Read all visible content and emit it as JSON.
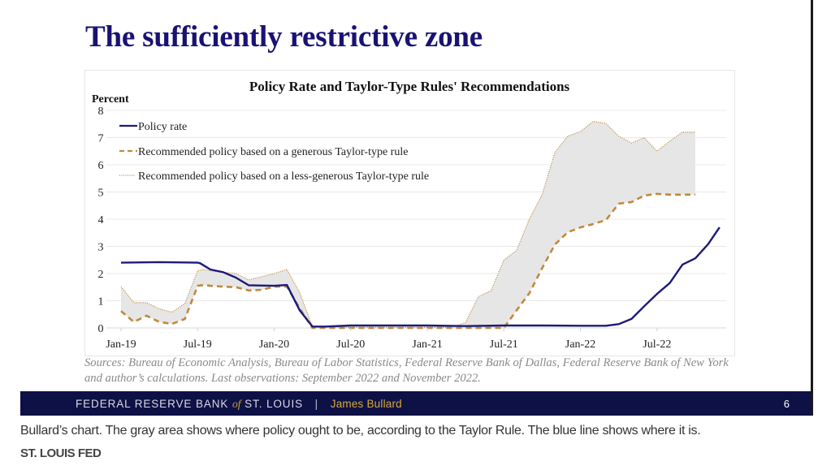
{
  "slide": {
    "title": "The sufficiently restrictive zone",
    "sources": "Sources: Bureau of Economic Analysis, Bureau of Labor Statistics, Federal Reserve Bank of Dallas, Federal Reserve Bank of New York and author’s calculations. Last observations: September 2022 and November 2022.",
    "footer": {
      "org_before": "FEDERAL RESERVE BANK",
      "org_of": "of",
      "org_after": "ST. LOUIS",
      "separator": "|",
      "author": "James Bullard",
      "page_number": "6"
    }
  },
  "caption": {
    "text": "Bullard’s chart. The gray area shows where policy ought to be, according to the Taylor Rule. The blue line shows where it is.",
    "credit": "ST. LOUIS FED"
  },
  "colors": {
    "title": "#1a1273",
    "policy_line": "#1c1a7a",
    "taylor_line": "#c08a3a",
    "band_fill": "#e6e6e6",
    "gridline": "#e8e8e8",
    "footer_bar": "#0e1145",
    "footer_author": "#d6aa3c"
  },
  "chart_data": {
    "type": "line",
    "title": "Policy Rate and Taylor-Type Rules' Recommendations",
    "ylabel": "Percent",
    "xlabel": "",
    "ylim": [
      0,
      8
    ],
    "yticks": [
      "0",
      "1",
      "2",
      "3",
      "4",
      "5",
      "6",
      "7",
      "8"
    ],
    "x_unit": "months since Jan-19",
    "xticks": [
      {
        "label": "Jan-19",
        "x": 0
      },
      {
        "label": "Jul-19",
        "x": 6
      },
      {
        "label": "Jan-20",
        "x": 12
      },
      {
        "label": "Jul-20",
        "x": 18
      },
      {
        "label": "Jan-21",
        "x": 24
      },
      {
        "label": "Jul-21",
        "x": 30
      },
      {
        "label": "Jan-22",
        "x": 36
      },
      {
        "label": "Jul-22",
        "x": 42
      }
    ],
    "xlim": [
      0,
      47.5
    ],
    "grid": true,
    "legend_position": "top-left",
    "shaded_band": {
      "between": [
        "generous",
        "less_generous"
      ],
      "description": "gray area between the two Taylor-type rule recommendations"
    },
    "series": [
      {
        "key": "policy",
        "name": "Policy rate",
        "style": "solid",
        "x": [
          0,
          3,
          6,
          6.2,
          7,
          8,
          9,
          10,
          12,
          13,
          14,
          15,
          16,
          18,
          21,
          24,
          27,
          30,
          33,
          36,
          37,
          38,
          39,
          40,
          41,
          42,
          43,
          44,
          45,
          46,
          46.9
        ],
        "y": [
          2.4,
          2.42,
          2.4,
          2.38,
          2.15,
          2.05,
          1.85,
          1.57,
          1.55,
          1.58,
          0.65,
          0.05,
          0.05,
          0.09,
          0.09,
          0.09,
          0.07,
          0.09,
          0.09,
          0.08,
          0.08,
          0.08,
          0.14,
          0.33,
          0.8,
          1.25,
          1.65,
          2.33,
          2.56,
          3.08,
          3.7
        ]
      },
      {
        "key": "generous",
        "name": "Recommended policy based on a generous Taylor-type rule",
        "style": "dashed",
        "x": [
          0,
          1,
          2,
          3,
          4,
          5,
          6,
          6.5,
          7,
          8,
          9,
          10,
          11,
          12,
          13,
          14,
          15,
          18,
          21,
          24,
          27,
          28,
          29,
          30,
          31,
          32,
          33,
          34,
          35,
          36,
          37,
          38,
          39,
          40,
          41,
          42,
          43,
          44,
          45
        ],
        "y": [
          0.62,
          0.22,
          0.45,
          0.22,
          0.15,
          0.33,
          1.55,
          1.58,
          1.55,
          1.52,
          1.5,
          1.38,
          1.4,
          1.52,
          1.52,
          0.72,
          0.0,
          0.0,
          0.0,
          0.0,
          0.0,
          0.0,
          0.0,
          0.0,
          0.65,
          1.28,
          2.2,
          3.07,
          3.52,
          3.7,
          3.82,
          3.97,
          4.57,
          4.63,
          4.87,
          4.93,
          4.9,
          4.9,
          4.9
        ]
      },
      {
        "key": "less_generous",
        "name": "Recommended policy based on a less-generous Taylor-type rule",
        "style": "dotted",
        "x": [
          0,
          1,
          2,
          3,
          4,
          5,
          6,
          6.5,
          7,
          8,
          9,
          10,
          11,
          12,
          13,
          14,
          15,
          18,
          21,
          24,
          26,
          27,
          28,
          29,
          30,
          31,
          32,
          33,
          34,
          35,
          36,
          37,
          38,
          39,
          40,
          41,
          42,
          43,
          44,
          45
        ],
        "y": [
          1.52,
          0.93,
          0.93,
          0.7,
          0.58,
          0.9,
          2.1,
          2.15,
          2.1,
          2.05,
          2.0,
          1.77,
          1.88,
          2.0,
          2.15,
          1.3,
          0.05,
          0.02,
          0.02,
          0.02,
          0.03,
          0.2,
          1.15,
          1.37,
          2.5,
          2.85,
          4.0,
          4.9,
          6.45,
          7.05,
          7.22,
          7.6,
          7.52,
          7.05,
          6.8,
          7.0,
          6.5,
          6.87,
          7.2,
          7.2
        ]
      }
    ]
  }
}
